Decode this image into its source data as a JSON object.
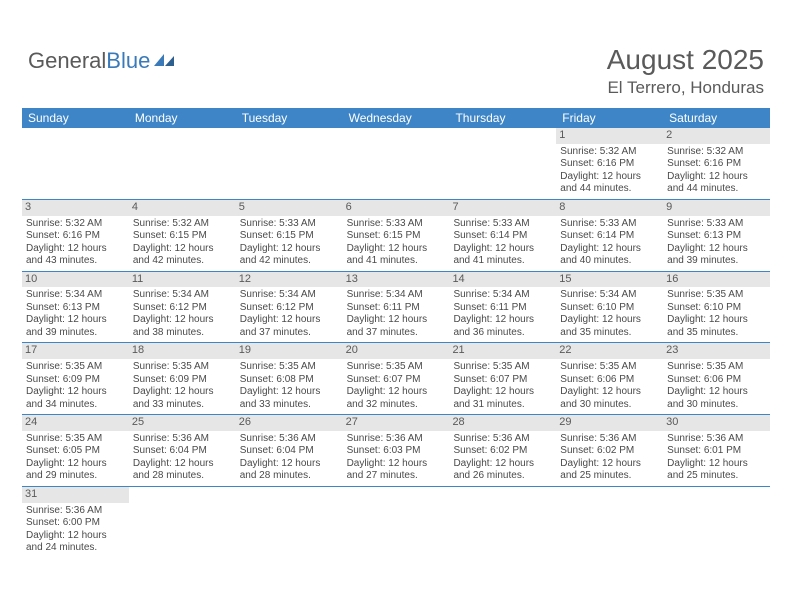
{
  "logo": {
    "part1": "General",
    "part2": "Blue"
  },
  "title": "August 2025",
  "location": "El Terrero, Honduras",
  "colors": {
    "header_bg": "#3d85c6",
    "daynum_bg": "#e6e6e6",
    "text": "#5a5a5a",
    "logo_blue": "#3a7ab8"
  },
  "day_names": [
    "Sunday",
    "Monday",
    "Tuesday",
    "Wednesday",
    "Thursday",
    "Friday",
    "Saturday"
  ],
  "weeks": [
    [
      null,
      null,
      null,
      null,
      null,
      {
        "n": "1",
        "sunrise": "Sunrise: 5:32 AM",
        "sunset": "Sunset: 6:16 PM",
        "day1": "Daylight: 12 hours",
        "day2": "and 44 minutes."
      },
      {
        "n": "2",
        "sunrise": "Sunrise: 5:32 AM",
        "sunset": "Sunset: 6:16 PM",
        "day1": "Daylight: 12 hours",
        "day2": "and 44 minutes."
      }
    ],
    [
      {
        "n": "3",
        "sunrise": "Sunrise: 5:32 AM",
        "sunset": "Sunset: 6:16 PM",
        "day1": "Daylight: 12 hours",
        "day2": "and 43 minutes."
      },
      {
        "n": "4",
        "sunrise": "Sunrise: 5:32 AM",
        "sunset": "Sunset: 6:15 PM",
        "day1": "Daylight: 12 hours",
        "day2": "and 42 minutes."
      },
      {
        "n": "5",
        "sunrise": "Sunrise: 5:33 AM",
        "sunset": "Sunset: 6:15 PM",
        "day1": "Daylight: 12 hours",
        "day2": "and 42 minutes."
      },
      {
        "n": "6",
        "sunrise": "Sunrise: 5:33 AM",
        "sunset": "Sunset: 6:15 PM",
        "day1": "Daylight: 12 hours",
        "day2": "and 41 minutes."
      },
      {
        "n": "7",
        "sunrise": "Sunrise: 5:33 AM",
        "sunset": "Sunset: 6:14 PM",
        "day1": "Daylight: 12 hours",
        "day2": "and 41 minutes."
      },
      {
        "n": "8",
        "sunrise": "Sunrise: 5:33 AM",
        "sunset": "Sunset: 6:14 PM",
        "day1": "Daylight: 12 hours",
        "day2": "and 40 minutes."
      },
      {
        "n": "9",
        "sunrise": "Sunrise: 5:33 AM",
        "sunset": "Sunset: 6:13 PM",
        "day1": "Daylight: 12 hours",
        "day2": "and 39 minutes."
      }
    ],
    [
      {
        "n": "10",
        "sunrise": "Sunrise: 5:34 AM",
        "sunset": "Sunset: 6:13 PM",
        "day1": "Daylight: 12 hours",
        "day2": "and 39 minutes."
      },
      {
        "n": "11",
        "sunrise": "Sunrise: 5:34 AM",
        "sunset": "Sunset: 6:12 PM",
        "day1": "Daylight: 12 hours",
        "day2": "and 38 minutes."
      },
      {
        "n": "12",
        "sunrise": "Sunrise: 5:34 AM",
        "sunset": "Sunset: 6:12 PM",
        "day1": "Daylight: 12 hours",
        "day2": "and 37 minutes."
      },
      {
        "n": "13",
        "sunrise": "Sunrise: 5:34 AM",
        "sunset": "Sunset: 6:11 PM",
        "day1": "Daylight: 12 hours",
        "day2": "and 37 minutes."
      },
      {
        "n": "14",
        "sunrise": "Sunrise: 5:34 AM",
        "sunset": "Sunset: 6:11 PM",
        "day1": "Daylight: 12 hours",
        "day2": "and 36 minutes."
      },
      {
        "n": "15",
        "sunrise": "Sunrise: 5:34 AM",
        "sunset": "Sunset: 6:10 PM",
        "day1": "Daylight: 12 hours",
        "day2": "and 35 minutes."
      },
      {
        "n": "16",
        "sunrise": "Sunrise: 5:35 AM",
        "sunset": "Sunset: 6:10 PM",
        "day1": "Daylight: 12 hours",
        "day2": "and 35 minutes."
      }
    ],
    [
      {
        "n": "17",
        "sunrise": "Sunrise: 5:35 AM",
        "sunset": "Sunset: 6:09 PM",
        "day1": "Daylight: 12 hours",
        "day2": "and 34 minutes."
      },
      {
        "n": "18",
        "sunrise": "Sunrise: 5:35 AM",
        "sunset": "Sunset: 6:09 PM",
        "day1": "Daylight: 12 hours",
        "day2": "and 33 minutes."
      },
      {
        "n": "19",
        "sunrise": "Sunrise: 5:35 AM",
        "sunset": "Sunset: 6:08 PM",
        "day1": "Daylight: 12 hours",
        "day2": "and 33 minutes."
      },
      {
        "n": "20",
        "sunrise": "Sunrise: 5:35 AM",
        "sunset": "Sunset: 6:07 PM",
        "day1": "Daylight: 12 hours",
        "day2": "and 32 minutes."
      },
      {
        "n": "21",
        "sunrise": "Sunrise: 5:35 AM",
        "sunset": "Sunset: 6:07 PM",
        "day1": "Daylight: 12 hours",
        "day2": "and 31 minutes."
      },
      {
        "n": "22",
        "sunrise": "Sunrise: 5:35 AM",
        "sunset": "Sunset: 6:06 PM",
        "day1": "Daylight: 12 hours",
        "day2": "and 30 minutes."
      },
      {
        "n": "23",
        "sunrise": "Sunrise: 5:35 AM",
        "sunset": "Sunset: 6:06 PM",
        "day1": "Daylight: 12 hours",
        "day2": "and 30 minutes."
      }
    ],
    [
      {
        "n": "24",
        "sunrise": "Sunrise: 5:35 AM",
        "sunset": "Sunset: 6:05 PM",
        "day1": "Daylight: 12 hours",
        "day2": "and 29 minutes."
      },
      {
        "n": "25",
        "sunrise": "Sunrise: 5:36 AM",
        "sunset": "Sunset: 6:04 PM",
        "day1": "Daylight: 12 hours",
        "day2": "and 28 minutes."
      },
      {
        "n": "26",
        "sunrise": "Sunrise: 5:36 AM",
        "sunset": "Sunset: 6:04 PM",
        "day1": "Daylight: 12 hours",
        "day2": "and 28 minutes."
      },
      {
        "n": "27",
        "sunrise": "Sunrise: 5:36 AM",
        "sunset": "Sunset: 6:03 PM",
        "day1": "Daylight: 12 hours",
        "day2": "and 27 minutes."
      },
      {
        "n": "28",
        "sunrise": "Sunrise: 5:36 AM",
        "sunset": "Sunset: 6:02 PM",
        "day1": "Daylight: 12 hours",
        "day2": "and 26 minutes."
      },
      {
        "n": "29",
        "sunrise": "Sunrise: 5:36 AM",
        "sunset": "Sunset: 6:02 PM",
        "day1": "Daylight: 12 hours",
        "day2": "and 25 minutes."
      },
      {
        "n": "30",
        "sunrise": "Sunrise: 5:36 AM",
        "sunset": "Sunset: 6:01 PM",
        "day1": "Daylight: 12 hours",
        "day2": "and 25 minutes."
      }
    ],
    [
      {
        "n": "31",
        "sunrise": "Sunrise: 5:36 AM",
        "sunset": "Sunset: 6:00 PM",
        "day1": "Daylight: 12 hours",
        "day2": "and 24 minutes."
      },
      null,
      null,
      null,
      null,
      null,
      null
    ]
  ]
}
